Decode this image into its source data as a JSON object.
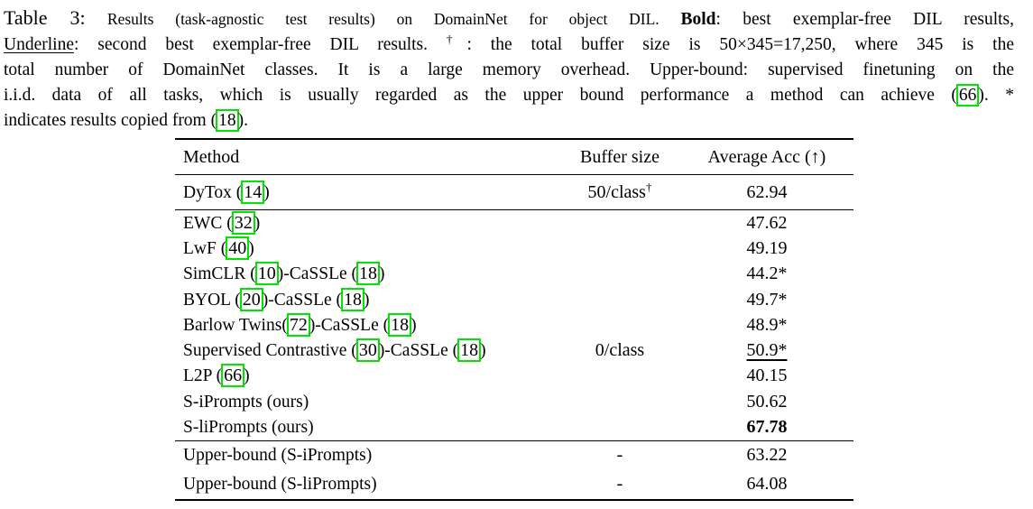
{
  "page": {
    "background_color": "#ffffff",
    "text_color": "#000000",
    "citation_box_color": "#00e400"
  },
  "caption": {
    "lines": [
      {
        "justify": true,
        "segments": [
          {
            "text": "Table 3:",
            "style": "label"
          },
          {
            "text": " ",
            "style": "normal"
          },
          {
            "text": "Results (task-agnostic test results) on DomainNet for object DIL. ",
            "style": "small"
          },
          {
            "text": "Bold",
            "style": "bold"
          },
          {
            "text": ": best exemplar-free DIL results,",
            "style": "normal"
          }
        ]
      },
      {
        "justify": true,
        "segments": [
          {
            "text": "Underline",
            "style": "underline"
          },
          {
            "text": ": second best exemplar-free DIL results. ",
            "style": "normal"
          },
          {
            "text": "†",
            "style": "sup"
          },
          {
            "text": ": the total buffer size is 50×345=17,250, where 345 is the",
            "style": "normal"
          }
        ]
      },
      {
        "justify": true,
        "segments": [
          {
            "text": "total number of DomainNet classes. It is a large memory overhead. Upper-bound: supervised finetuning on the",
            "style": "normal"
          }
        ]
      },
      {
        "justify": true,
        "segments": [
          {
            "text": "i.i.d. data of all tasks, which is usually regarded as the upper bound performance a method can achieve (",
            "style": "normal"
          },
          {
            "text": "66",
            "style": "cite"
          },
          {
            "text": "). *",
            "style": "normal"
          }
        ]
      },
      {
        "justify": false,
        "segments": [
          {
            "text": "indicates results copied from (",
            "style": "normal"
          },
          {
            "text": "18",
            "style": "cite"
          },
          {
            "text": ").",
            "style": "normal"
          }
        ]
      }
    ]
  },
  "table": {
    "headers": [
      "Method",
      "Buffer size",
      "Average Acc (↑)"
    ],
    "rows": [
      {
        "group": "buffered",
        "method": [
          {
            "text": "DyTox ("
          },
          {
            "text": "14",
            "style": "cite"
          },
          {
            "text": ")"
          }
        ],
        "buffer": [
          {
            "text": "50/class"
          },
          {
            "text": "†",
            "style": "sup"
          }
        ],
        "acc": "62.94",
        "acc_style": "normal"
      },
      {
        "group": "exemplar_free",
        "method": [
          {
            "text": "EWC ("
          },
          {
            "text": "32",
            "style": "cite"
          },
          {
            "text": ")"
          }
        ],
        "buffer": [],
        "acc": "47.62",
        "acc_style": "normal"
      },
      {
        "group": "exemplar_free",
        "method": [
          {
            "text": "LwF ("
          },
          {
            "text": "40",
            "style": "cite"
          },
          {
            "text": ")"
          }
        ],
        "buffer": [],
        "acc": "49.19",
        "acc_style": "normal"
      },
      {
        "group": "exemplar_free",
        "method": [
          {
            "text": "SimCLR ("
          },
          {
            "text": "10",
            "style": "cite"
          },
          {
            "text": ")-CaSSLe ("
          },
          {
            "text": "18",
            "style": "cite"
          },
          {
            "text": ")"
          }
        ],
        "buffer": [],
        "acc": "44.2*",
        "acc_style": "normal"
      },
      {
        "group": "exemplar_free",
        "method": [
          {
            "text": "BYOL ("
          },
          {
            "text": "20",
            "style": "cite"
          },
          {
            "text": ")-CaSSLe ("
          },
          {
            "text": "18",
            "style": "cite"
          },
          {
            "text": ")"
          }
        ],
        "buffer": [],
        "acc": "49.7*",
        "acc_style": "normal"
      },
      {
        "group": "exemplar_free",
        "method": [
          {
            "text": "Barlow Twins("
          },
          {
            "text": "72",
            "style": "cite"
          },
          {
            "text": ")-CaSSLe ("
          },
          {
            "text": "18",
            "style": "cite"
          },
          {
            "text": ")"
          }
        ],
        "buffer": [],
        "acc": "48.9*",
        "acc_style": "normal"
      },
      {
        "group": "exemplar_free",
        "method": [
          {
            "text": "Supervised Contrastive ("
          },
          {
            "text": "30",
            "style": "cite"
          },
          {
            "text": ")-CaSSLe ("
          },
          {
            "text": "18",
            "style": "cite"
          },
          {
            "text": ")"
          }
        ],
        "buffer": [
          {
            "text": "0/class"
          }
        ],
        "acc": "50.9*",
        "acc_style": "underline"
      },
      {
        "group": "exemplar_free",
        "method": [
          {
            "text": "L2P ("
          },
          {
            "text": "66",
            "style": "cite"
          },
          {
            "text": ")"
          }
        ],
        "buffer": [],
        "acc": "40.15",
        "acc_style": "normal"
      },
      {
        "group": "exemplar_free",
        "method": [
          {
            "text": "S-iPrompts (ours)"
          }
        ],
        "buffer": [],
        "acc": "50.62",
        "acc_style": "normal"
      },
      {
        "group": "exemplar_free",
        "method": [
          {
            "text": "S-liPrompts (ours)"
          }
        ],
        "buffer": [],
        "acc": "67.78",
        "acc_style": "bold"
      },
      {
        "group": "upper_bound",
        "method": [
          {
            "text": "Upper-bound (S-iPrompts)"
          }
        ],
        "buffer": [
          {
            "text": "-"
          }
        ],
        "acc": "63.22",
        "acc_style": "normal"
      },
      {
        "group": "upper_bound",
        "method": [
          {
            "text": "Upper-bound (S-liPrompts)"
          }
        ],
        "buffer": [
          {
            "text": "-"
          }
        ],
        "acc": "64.08",
        "acc_style": "normal"
      }
    ]
  }
}
